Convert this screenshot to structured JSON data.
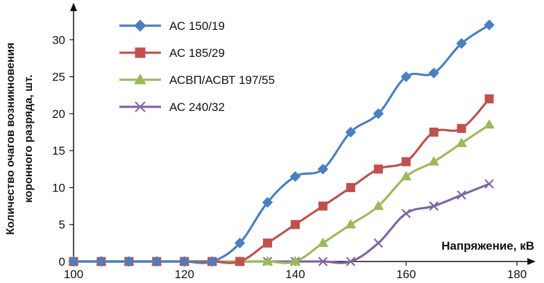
{
  "chart_data": {
    "type": "line",
    "x": [
      100,
      105,
      110,
      115,
      120,
      125,
      130,
      135,
      140,
      145,
      150,
      155,
      160,
      165,
      170,
      175
    ],
    "xlim": [
      100,
      180
    ],
    "ylim": [
      0,
      32
    ],
    "xticks": [
      "100",
      "120",
      "140",
      "160",
      "180"
    ],
    "yticks": [
      "0",
      "5",
      "10",
      "15",
      "20",
      "25",
      "30"
    ],
    "xlabel": "Напряжение, кВ",
    "ylabel": [
      "Количество очагов возникновения",
      "коронного разряда, шт."
    ],
    "grid": false,
    "legend_position": "top-left",
    "series": [
      {
        "name": "АС 150/19",
        "color": "#4a7fc1",
        "marker": "diamond",
        "values": [
          0,
          0,
          0,
          0,
          0,
          0,
          2.5,
          8,
          11.5,
          12.5,
          17.5,
          20,
          25,
          25.5,
          29.5,
          32
        ]
      },
      {
        "name": "АС 185/29",
        "color": "#c0504d",
        "marker": "square",
        "values": [
          0,
          0,
          0,
          0,
          0,
          0,
          0,
          2.5,
          5,
          7.5,
          10,
          12.5,
          13.5,
          17.5,
          18,
          22
        ]
      },
      {
        "name": "АСВП/АСВТ 197/55",
        "color": "#9bbb59",
        "marker": "triangle",
        "values": [
          0,
          0,
          0,
          0,
          0,
          0,
          0,
          0,
          0,
          2.5,
          5,
          7.5,
          11.5,
          13.5,
          16,
          18.5
        ]
      },
      {
        "name": "АС 240/32",
        "color": "#8064a2",
        "marker": "x",
        "values": [
          0,
          0,
          0,
          0,
          0,
          0,
          0,
          0,
          0,
          0,
          0,
          2.5,
          6.5,
          7.5,
          9,
          10.5
        ]
      }
    ]
  }
}
